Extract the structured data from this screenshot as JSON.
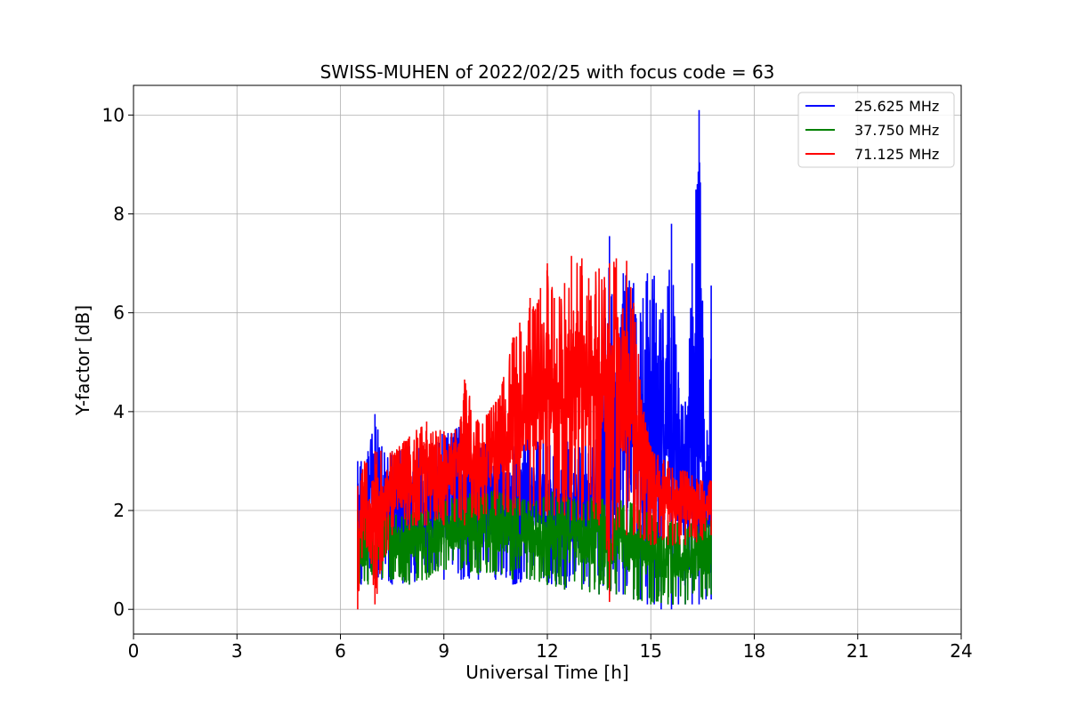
{
  "chart_data": {
    "type": "line",
    "title": "SWISS-MUHEN of 2022/02/25 with focus code = 63",
    "xlabel": "Universal Time [h]",
    "ylabel": "Y-factor [dB]",
    "xlim": [
      0,
      24
    ],
    "ylim": [
      -0.5,
      10.6
    ],
    "xticks": [
      0,
      3,
      6,
      9,
      12,
      15,
      18,
      21,
      24
    ],
    "xtick_labels": [
      "0",
      "3",
      "6",
      "9",
      "12",
      "15",
      "18",
      "21",
      "24"
    ],
    "yticks": [
      0,
      2,
      4,
      6,
      8,
      10
    ],
    "ytick_labels": [
      "0",
      "2",
      "4",
      "6",
      "8",
      "10"
    ],
    "grid": true,
    "legend_position": "top-right",
    "series": [
      {
        "name": "25.625 MHz",
        "color": "#0000ff",
        "x": [
          6.5,
          6.6,
          6.8,
          7.0,
          7.2,
          7.5,
          8.0,
          8.5,
          9.0,
          9.5,
          10.0,
          10.5,
          11.0,
          11.5,
          12.0,
          12.5,
          13.0,
          13.5,
          13.8,
          14.0,
          14.2,
          14.5,
          14.7,
          14.9,
          15.1,
          15.3,
          15.6,
          15.8,
          16.0,
          16.2,
          16.4,
          16.6,
          16.75
        ],
        "y_high": [
          3.0,
          3.0,
          3.2,
          3.95,
          3.3,
          3.2,
          3.3,
          3.4,
          3.6,
          3.7,
          3.4,
          3.5,
          3.3,
          3.6,
          3.3,
          3.4,
          3.3,
          3.5,
          7.55,
          4.5,
          6.8,
          6.6,
          6.0,
          6.8,
          6.75,
          6.0,
          7.8,
          4.8,
          4.2,
          7.0,
          10.1,
          3.0,
          6.55
        ],
        "y_low": [
          0.4,
          0.5,
          0.6,
          0.6,
          0.6,
          0.5,
          0.5,
          0.7,
          0.6,
          0.6,
          0.6,
          0.6,
          0.5,
          0.6,
          0.5,
          0.4,
          0.4,
          0.3,
          0.3,
          0.3,
          0.3,
          0.2,
          0.2,
          0.1,
          0.1,
          0.0,
          0.0,
          0.1,
          0.1,
          0.1,
          0.1,
          0.2,
          0.2
        ]
      },
      {
        "name": "37.750 MHz",
        "color": "#008000",
        "x": [
          6.5,
          6.8,
          7.0,
          7.5,
          8.0,
          8.5,
          9.0,
          9.5,
          10.0,
          10.5,
          11.0,
          11.5,
          12.0,
          12.5,
          13.0,
          13.5,
          14.0,
          14.5,
          15.0,
          15.5,
          16.0,
          16.5,
          16.75
        ],
        "y_high": [
          2.0,
          2.0,
          2.1,
          1.9,
          2.0,
          2.0,
          2.2,
          2.3,
          2.4,
          2.4,
          2.3,
          2.2,
          2.4,
          2.3,
          2.2,
          2.3,
          2.2,
          2.2,
          2.0,
          1.8,
          1.7,
          1.9,
          1.8
        ],
        "y_high_extra": [],
        "y_low": [
          0.4,
          0.5,
          0.6,
          0.6,
          0.5,
          0.6,
          0.8,
          0.8,
          0.7,
          0.7,
          0.6,
          0.6,
          0.5,
          0.4,
          0.4,
          0.3,
          0.3,
          0.2,
          0.1,
          0.1,
          0.1,
          0.2,
          0.3
        ]
      },
      {
        "name": "71.125 MHz",
        "color": "#ff0000",
        "x": [
          6.5,
          6.7,
          7.0,
          7.5,
          8.0,
          8.5,
          9.0,
          9.5,
          9.6,
          10.0,
          10.5,
          11.0,
          11.2,
          11.5,
          11.8,
          12.0,
          12.2,
          12.5,
          12.7,
          13.0,
          13.2,
          13.5,
          13.8,
          14.0,
          14.3,
          14.5,
          14.8,
          15.0,
          15.5,
          16.0,
          16.5,
          16.75
        ],
        "y_high": [
          2.5,
          3.0,
          3.2,
          3.2,
          3.5,
          3.8,
          3.6,
          3.9,
          4.65,
          3.8,
          4.2,
          5.5,
          5.8,
          6.3,
          6.5,
          7.0,
          6.3,
          6.6,
          7.15,
          7.1,
          6.7,
          6.9,
          7.0,
          7.1,
          7.05,
          6.2,
          4.0,
          3.3,
          3.0,
          2.8,
          2.6,
          2.6
        ],
        "y_low": [
          0.0,
          1.4,
          0.1,
          1.5,
          1.6,
          1.7,
          1.7,
          1.8,
          1.7,
          1.8,
          1.9,
          1.9,
          1.9,
          2.0,
          1.9,
          1.9,
          1.9,
          1.9,
          1.8,
          1.8,
          1.8,
          1.7,
          0.15,
          1.6,
          1.5,
          1.5,
          1.4,
          1.3,
          1.3,
          1.3,
          1.4,
          1.5
        ]
      }
    ]
  }
}
